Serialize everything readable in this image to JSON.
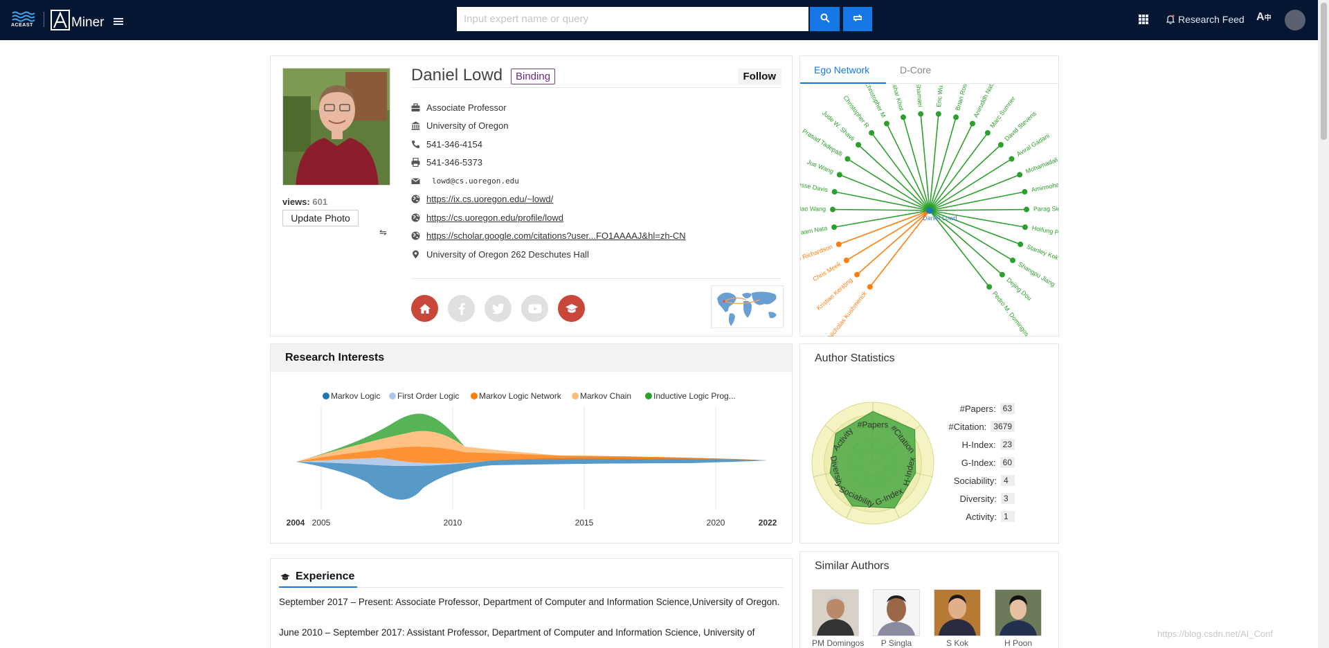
{
  "header": {
    "brand_left": "ACEAST",
    "brand": "Miner",
    "search_placeholder": "Input expert name or query",
    "research_feed_label": "Research Feed"
  },
  "profile": {
    "name": "Daniel Lowd",
    "binding_label": "Binding",
    "follow_label": "Follow",
    "views_label": "views:",
    "views_count": "601",
    "update_photo_label": "Update Photo",
    "title": "Associate Professor",
    "organization": "University of Oregon",
    "phone": "541-346-4154",
    "fax": "541-346-5373",
    "email": "lowd@cs.uoregon.edu",
    "links": [
      "https://ix.cs.uoregon.edu/~lowd/",
      "https://cs.uoregon.edu/profile/lowd",
      "https://scholar.google.com/citations?user...FO1AAAAJ&hl=zh-CN"
    ],
    "address": "University of Oregon 262 Deschutes Hall",
    "socials": [
      {
        "icon": "home-icon",
        "active": true
      },
      {
        "icon": "facebook-icon",
        "active": false
      },
      {
        "icon": "twitter-icon",
        "active": false
      },
      {
        "icon": "youtube-icon",
        "active": false
      },
      {
        "icon": "graduation-cap-icon",
        "active": true
      }
    ]
  },
  "ego_network": {
    "tabs": [
      "Ego Network",
      "D-Core"
    ],
    "active_tab": "Ego Network",
    "center": "Daniel Lowd",
    "nodes": [
      {
        "name": "Nicholas Kushmerick",
        "group": "orange"
      },
      {
        "name": "Kristian Kersting",
        "group": "orange"
      },
      {
        "name": "Chris Meek",
        "group": "orange"
      },
      {
        "name": "Irene Richardson",
        "group": "orange"
      },
      {
        "name": "Sriraam Nata",
        "group": "green"
      },
      {
        "name": "Hao Wang",
        "group": "green"
      },
      {
        "name": "Jesse Davis",
        "group": "green"
      },
      {
        "name": "Jue Wang",
        "group": "green"
      },
      {
        "name": "Prasad Tadepalli",
        "group": "green"
      },
      {
        "name": "Jude W. Shavli",
        "group": "green"
      },
      {
        "name": "Christopher R",
        "group": "green"
      },
      {
        "name": "Christopher M",
        "group": "green"
      },
      {
        "name": "Tushar Khot",
        "group": "green"
      },
      {
        "name": "Arash Shamaei",
        "group": "green"
      },
      {
        "name": "Eric Wu",
        "group": "green"
      },
      {
        "name": "Brian Rosey",
        "group": "green"
      },
      {
        "name": "Aniruddh Nath",
        "group": "green"
      },
      {
        "name": "Marc Sumner",
        "group": "green"
      },
      {
        "name": "David Stevens",
        "group": "green"
      },
      {
        "name": "Aviral Gadani",
        "group": "green"
      },
      {
        "name": "Mohamadali Torkamani",
        "group": "green"
      },
      {
        "name": "Amirmohammad Rooshenas",
        "group": "green"
      },
      {
        "name": "Parag Singla",
        "group": "green"
      },
      {
        "name": "Hoifung Poon",
        "group": "green"
      },
      {
        "name": "Stanley Kok",
        "group": "green"
      },
      {
        "name": "Shangpu Jiang",
        "group": "green"
      },
      {
        "name": "Dejing Dou",
        "group": "green"
      },
      {
        "name": "Pedro M. Domingos",
        "group": "green"
      }
    ],
    "colors": {
      "orange": "#ff7f0e",
      "green": "#2ca02c"
    }
  },
  "research_interests": {
    "title": "Research Interests",
    "legend": [
      {
        "name": "Markov Logic",
        "color": "#1f77b4"
      },
      {
        "name": "First Order Logic",
        "color": "#aec7e8"
      },
      {
        "name": "Markov Logic Network",
        "color": "#ff7f0e"
      },
      {
        "name": "Markov Chain",
        "color": "#ffbb78"
      },
      {
        "name": "Inductive Logic Prog...",
        "color": "#2ca02c"
      }
    ],
    "x_ticks": [
      "2004",
      "2005",
      "2010",
      "2015",
      "2020",
      "2022"
    ]
  },
  "author_statistics": {
    "title": "Author Statistics",
    "radar_axes": [
      "#Papers",
      "#Citation",
      "H-Index",
      "G-Index",
      "Sociability",
      "Diversity",
      "Activity"
    ],
    "rows": [
      {
        "label": "#Papers:",
        "value": "63"
      },
      {
        "label": "#Citation:",
        "value": "3679"
      },
      {
        "label": "H-Index:",
        "value": "23"
      },
      {
        "label": "G-Index:",
        "value": "60"
      },
      {
        "label": "Sociability:",
        "value": "4"
      },
      {
        "label": "Diversity:",
        "value": "3"
      },
      {
        "label": "Activity:",
        "value": "1"
      }
    ]
  },
  "experience": {
    "title": "Experience",
    "entries": [
      "September 2017 – Present: Associate Professor, Department of Computer and Information Science,University of Oregon.",
      "June 2010 – September 2017: Assistant Professor, Department of Computer and Information Science, University of"
    ]
  },
  "similar_authors": {
    "title": "Similar Authors",
    "authors": [
      "PM Domingos",
      "P Singla",
      "S Kok",
      "H Poon"
    ]
  },
  "watermark": "https://blog.csdn.net/AI_Conf"
}
